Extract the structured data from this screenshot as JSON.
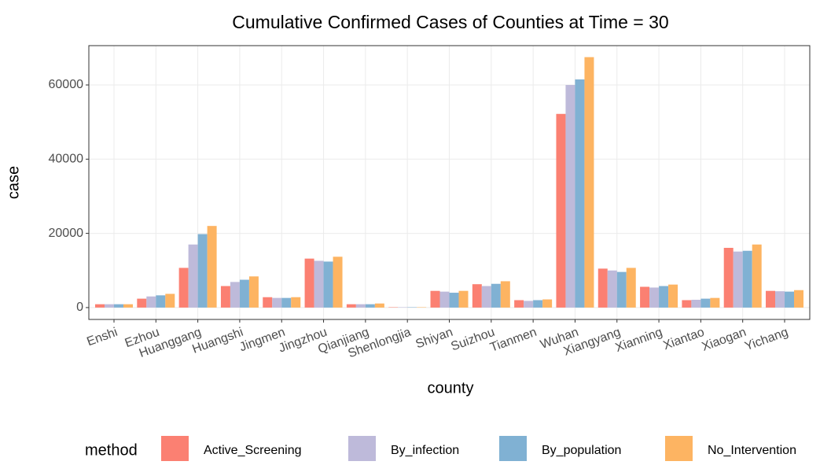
{
  "chart_data": {
    "type": "bar",
    "title": "Cumulative Confirmed Cases of Counties at Time = 30",
    "x_label": "county",
    "y_label": "case",
    "legend_title": "method",
    "categories": [
      "Enshi",
      "Ezhou",
      "Huanggang",
      "Huangshi",
      "Jingmen",
      "Jingzhou",
      "Qianjiang",
      "Shenlongjia",
      "Shiyan",
      "Suizhou",
      "Tianmen",
      "Wuhan",
      "Xiangyang",
      "Xianning",
      "Xiantao",
      "Xiaogan",
      "Yichang"
    ],
    "series": [
      {
        "name": "Active_Screening",
        "color": "#FB8072",
        "values": [
          900,
          2400,
          10700,
          5800,
          2800,
          13200,
          900,
          100,
          4500,
          6300,
          2000,
          52200,
          10500,
          5600,
          2000,
          16100,
          4500
        ]
      },
      {
        "name": "By_infection",
        "color": "#BEBADA",
        "values": [
          900,
          3000,
          17000,
          6900,
          2600,
          12600,
          900,
          100,
          4300,
          5800,
          1800,
          60000,
          10000,
          5400,
          2100,
          15100,
          4400
        ]
      },
      {
        "name": "By_population",
        "color": "#80B1D3",
        "values": [
          900,
          3300,
          19800,
          7500,
          2600,
          12400,
          900,
          100,
          4000,
          6400,
          2000,
          61500,
          9600,
          5800,
          2400,
          15300,
          4300
        ]
      },
      {
        "name": "No_Intervention",
        "color": "#FDB462",
        "values": [
          900,
          3700,
          22000,
          8400,
          2800,
          13700,
          1100,
          100,
          4500,
          7100,
          2200,
          67500,
          10700,
          6200,
          2600,
          17000,
          4700
        ]
      }
    ],
    "ylim": [
      -3200,
      70600
    ],
    "yticks": [
      0,
      20000,
      40000,
      60000
    ],
    "grid": true,
    "legend_position": "bottom"
  }
}
